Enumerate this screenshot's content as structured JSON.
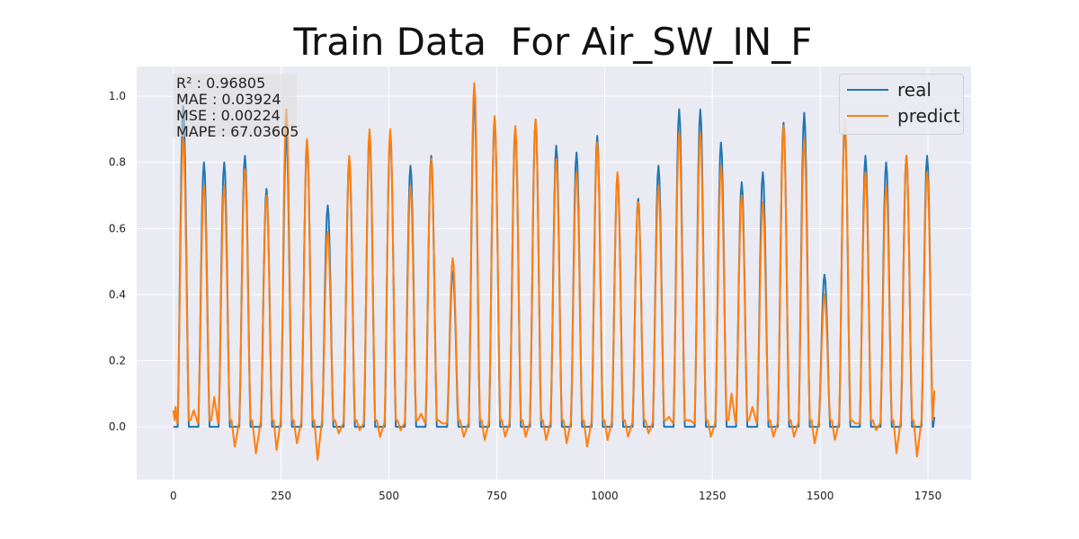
{
  "chart_data": {
    "type": "line",
    "title": "Train Data  For Air_SW_IN_F",
    "xlabel": "",
    "ylabel": "",
    "xlim": [
      -85,
      1850
    ],
    "ylim": [
      -0.16,
      1.09
    ],
    "grid": true,
    "legend_position": "top-right",
    "x_ticks": [
      "0",
      "250",
      "500",
      "750",
      "1000",
      "1250",
      "1500",
      "1750"
    ],
    "y_ticks": [
      "0.0",
      "0.2",
      "0.4",
      "0.6",
      "0.8",
      "1.0"
    ],
    "metrics": [
      "R² : 0.96805",
      "MAE : 0.03924",
      "MSE : 0.00224",
      "MAPE : 67.03605"
    ],
    "series": [
      {
        "name": "real",
        "color": "#1f77b4"
      },
      {
        "name": "predict",
        "color": "#ff7f0e"
      }
    ],
    "peaks": {
      "x": [
        23,
        71,
        118,
        166,
        216,
        262,
        310,
        358,
        408,
        455,
        503,
        550,
        598,
        648,
        698,
        745,
        793,
        840,
        888,
        935,
        983,
        1030,
        1078,
        1125,
        1173,
        1222,
        1270,
        1318,
        1367,
        1415,
        1463,
        1510,
        1557,
        1605,
        1653,
        1700,
        1748
      ],
      "real": [
        0.97,
        0.8,
        0.8,
        0.82,
        0.72,
        0.88,
        0.86,
        0.67,
        0.81,
        0.88,
        0.89,
        0.79,
        0.82,
        0.47,
        0.99,
        0.93,
        0.9,
        0.93,
        0.85,
        0.83,
        0.88,
        0.76,
        0.69,
        0.79,
        0.96,
        0.96,
        0.86,
        0.74,
        0.77,
        0.92,
        0.95,
        0.46,
        0.92,
        0.82,
        0.8,
        0.82,
        0.82
      ],
      "predict": [
        0.88,
        0.73,
        0.73,
        0.78,
        0.7,
        0.96,
        0.87,
        0.59,
        0.82,
        0.9,
        0.9,
        0.73,
        0.81,
        0.51,
        1.04,
        0.94,
        0.91,
        0.93,
        0.81,
        0.77,
        0.86,
        0.77,
        0.68,
        0.73,
        0.89,
        0.89,
        0.79,
        0.7,
        0.68,
        0.91,
        0.87,
        0.4,
        0.93,
        0.77,
        0.73,
        0.82,
        0.77
      ],
      "predict_dip": [
        0.06,
        0.05,
        0.09,
        -0.06,
        -0.08,
        -0.07,
        -0.05,
        -0.1,
        -0.02,
        -0.01,
        -0.03,
        -0.01,
        0.04,
        0.01,
        -0.03,
        -0.04,
        -0.03,
        -0.03,
        -0.04,
        -0.05,
        -0.06,
        -0.04,
        -0.03,
        -0.02,
        0.03,
        0.02,
        -0.03,
        0.1,
        0.06,
        -0.03,
        -0.03,
        -0.05,
        -0.04,
        0.01,
        -0.01,
        -0.08,
        -0.09
      ]
    }
  }
}
